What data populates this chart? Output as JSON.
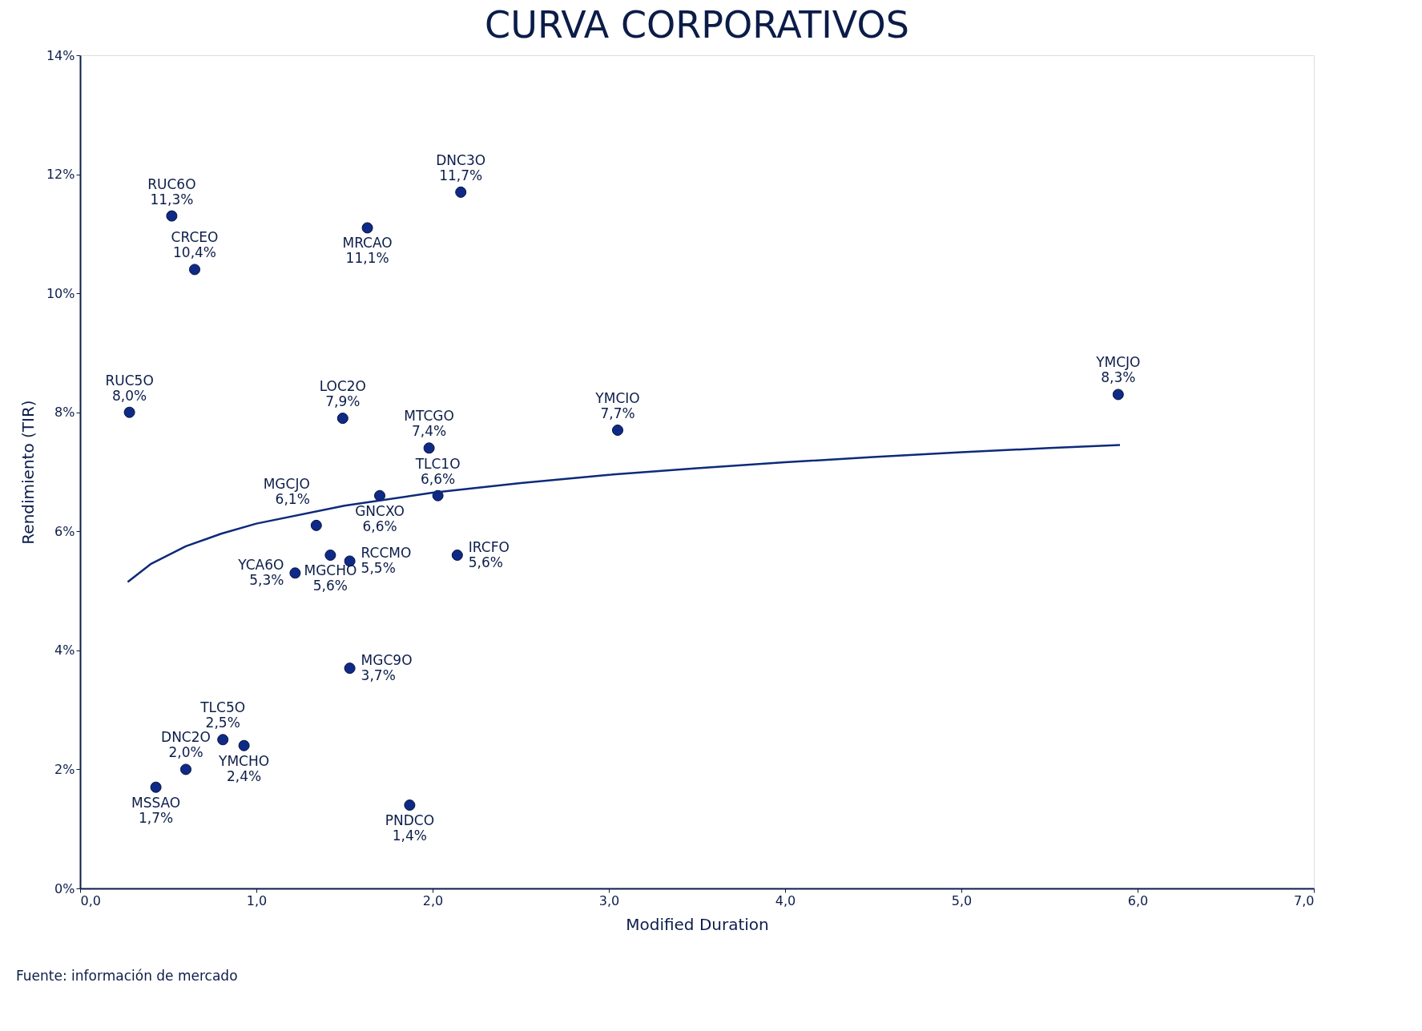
{
  "chart_data": {
    "type": "scatter",
    "title": "CURVA CORPORATIVOS",
    "xlabel": "Modified Duration",
    "ylabel": "Rendimiento (TIR)",
    "xlim": [
      0,
      7
    ],
    "ylim": [
      0,
      14
    ],
    "xticks": [
      {
        "value": 0,
        "label": "0,0"
      },
      {
        "value": 1,
        "label": "1,0"
      },
      {
        "value": 2,
        "label": "2,0"
      },
      {
        "value": 3,
        "label": "3,0"
      },
      {
        "value": 4,
        "label": "4,0"
      },
      {
        "value": 5,
        "label": "5,0"
      },
      {
        "value": 6,
        "label": "6,0"
      },
      {
        "value": 7,
        "label": "7,0"
      }
    ],
    "yticks": [
      {
        "value": 0,
        "label": "0%"
      },
      {
        "value": 2,
        "label": "2%"
      },
      {
        "value": 4,
        "label": "4%"
      },
      {
        "value": 6,
        "label": "6%"
      },
      {
        "value": 8,
        "label": "8%"
      },
      {
        "value": 10,
        "label": "10%"
      },
      {
        "value": 12,
        "label": "12%"
      },
      {
        "value": 14,
        "label": "14%"
      }
    ],
    "grid": false,
    "marker": "circle",
    "series": [
      {
        "color": "#0f2a86",
        "x": [
          0.52,
          0.65,
          2.16,
          1.63,
          0.28,
          1.49,
          1.98,
          3.05,
          5.89,
          2.03,
          1.7,
          1.34,
          1.22,
          1.42,
          1.53,
          2.14,
          1.53,
          0.81,
          0.6,
          0.93,
          0.43,
          1.87
        ],
        "values": [
          11.3,
          10.4,
          11.7,
          11.1,
          8.0,
          7.9,
          7.4,
          7.7,
          8.3,
          6.6,
          6.6,
          6.1,
          5.3,
          5.6,
          5.5,
          5.6,
          3.7,
          2.5,
          2.0,
          2.4,
          1.7,
          1.4
        ],
        "value_labels": [
          "11,3%",
          "10,4%",
          "11,7%",
          "11,1%",
          "8,0%",
          "7,9%",
          "7,4%",
          "7,7%",
          "8,3%",
          "6,6%",
          "6,6%",
          "6,1%",
          "5,3%",
          "5,6%",
          "5,5%",
          "5,6%",
          "3,7%",
          "2,5%",
          "2,0%",
          "2,4%",
          "1,7%",
          "1,4%"
        ]
      },
      {
        "type": "line",
        "color": "#0d2a7a",
        "line_style": "solid",
        "marker": "none",
        "x": [
          0.27,
          0.4,
          0.6,
          0.8,
          1,
          1.5,
          2,
          2.5,
          3,
          3.5,
          4,
          4.5,
          5,
          5.5,
          5.9
        ],
        "values": [
          5.15,
          5.45,
          5.75,
          5.96,
          6.13,
          6.43,
          6.65,
          6.81,
          6.95,
          7.06,
          7.16,
          7.25,
          7.33,
          7.4,
          7.45
        ]
      }
    ],
    "annotations": [
      {
        "text": "RUC6O",
        "x": 0.52,
        "y": 11.3
      },
      {
        "text": "CRCEO",
        "x": 0.65,
        "y": 10.4
      },
      {
        "text": "DNC3O",
        "x": 2.16,
        "y": 11.7
      },
      {
        "text": "MRCAO",
        "x": 1.63,
        "y": 11.1
      },
      {
        "text": "RUC5O",
        "x": 0.28,
        "y": 8.0
      },
      {
        "text": "LOC2O",
        "x": 1.49,
        "y": 7.9
      },
      {
        "text": "MTCGO",
        "x": 1.98,
        "y": 7.4
      },
      {
        "text": "YMCIO",
        "x": 3.05,
        "y": 7.7
      },
      {
        "text": "YMCJO",
        "x": 5.89,
        "y": 8.3
      },
      {
        "text": "TLC1O",
        "x": 2.03,
        "y": 6.6
      },
      {
        "text": "GNCXO",
        "x": 1.7,
        "y": 6.6
      },
      {
        "text": "MGCJO",
        "x": 1.34,
        "y": 6.1
      },
      {
        "text": "YCA6O",
        "x": 1.22,
        "y": 5.3
      },
      {
        "text": "MGCHO",
        "x": 1.42,
        "y": 5.6
      },
      {
        "text": "RCCMO",
        "x": 1.53,
        "y": 5.5
      },
      {
        "text": "IRCFO",
        "x": 2.14,
        "y": 5.6
      },
      {
        "text": "MGC9O",
        "x": 1.53,
        "y": 3.7
      },
      {
        "text": "TLC5O",
        "x": 0.81,
        "y": 2.5
      },
      {
        "text": "DNC2O",
        "x": 0.6,
        "y": 2.0
      },
      {
        "text": "YMCHO",
        "x": 0.93,
        "y": 2.4
      },
      {
        "text": "MSSAO",
        "x": 0.43,
        "y": 1.7
      },
      {
        "text": "PNDCO",
        "x": 1.87,
        "y": 1.4
      },
      "Fuente: información de mercado"
    ]
  }
}
